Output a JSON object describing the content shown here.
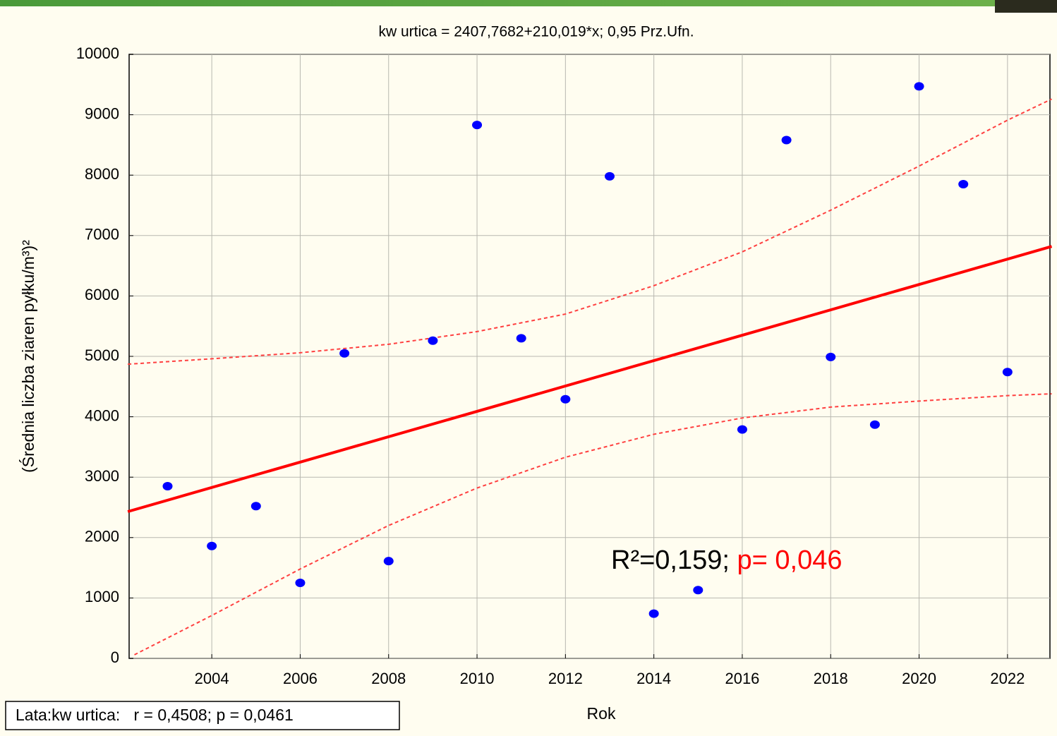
{
  "chart_data": {
    "type": "scatter",
    "title": "kw urtica = 2407,7682+210,019*x; 0,95 Prz.Ufn.",
    "xlabel": "Rok",
    "ylabel": "(Średnia liczba ziaren pyłku/m³)²",
    "x": [
      2003,
      2004,
      2005,
      2006,
      2007,
      2008,
      2009,
      2010,
      2011,
      2012,
      2013,
      2014,
      2015,
      2016,
      2017,
      2018,
      2019,
      2020,
      2021,
      2022
    ],
    "values": [
      2850,
      1860,
      2520,
      1250,
      5050,
      1610,
      5260,
      8830,
      5300,
      4290,
      7980,
      740,
      1130,
      3790,
      8580,
      4990,
      3870,
      9470,
      7850,
      4740
    ],
    "color": "#0000ff",
    "fit_line": {
      "x": [
        2002.1,
        2023
      ],
      "values": [
        2430,
        6820
      ],
      "color": "#ff0000"
    },
    "ci_upper": {
      "x": [
        2002.1,
        2004,
        2006,
        2008,
        2010,
        2012,
        2014,
        2016,
        2018,
        2020,
        2022,
        2023
      ],
      "values": [
        4870,
        4960,
        5060,
        5200,
        5410,
        5700,
        6170,
        6730,
        7420,
        8150,
        8910,
        9260
      ],
      "color": "#ff4040"
    },
    "ci_lower": {
      "x": [
        2002.25,
        2004,
        2006,
        2008,
        2010,
        2012,
        2014,
        2016,
        2018,
        2020,
        2022,
        2023
      ],
      "values": [
        60,
        710,
        1480,
        2200,
        2820,
        3330,
        3710,
        3980,
        4160,
        4260,
        4350,
        4380
      ],
      "color": "#ff4040"
    },
    "xlim": [
      2002.13,
      2022.96
    ],
    "ylim": [
      0,
      10000
    ],
    "xticks": [
      2004,
      2006,
      2008,
      2010,
      2012,
      2014,
      2016,
      2018,
      2020,
      2022
    ],
    "yticks": [
      0,
      1000,
      2000,
      3000,
      4000,
      5000,
      6000,
      7000,
      8000,
      9000,
      10000
    ],
    "grid": true,
    "annotation": {
      "r2": "R²=0,159; ",
      "p": "p= 0,046",
      "p_color": "#ff0000"
    },
    "stats_box": "Lata:kw urtica:   r = 0,4508; p = 0,0461"
  }
}
